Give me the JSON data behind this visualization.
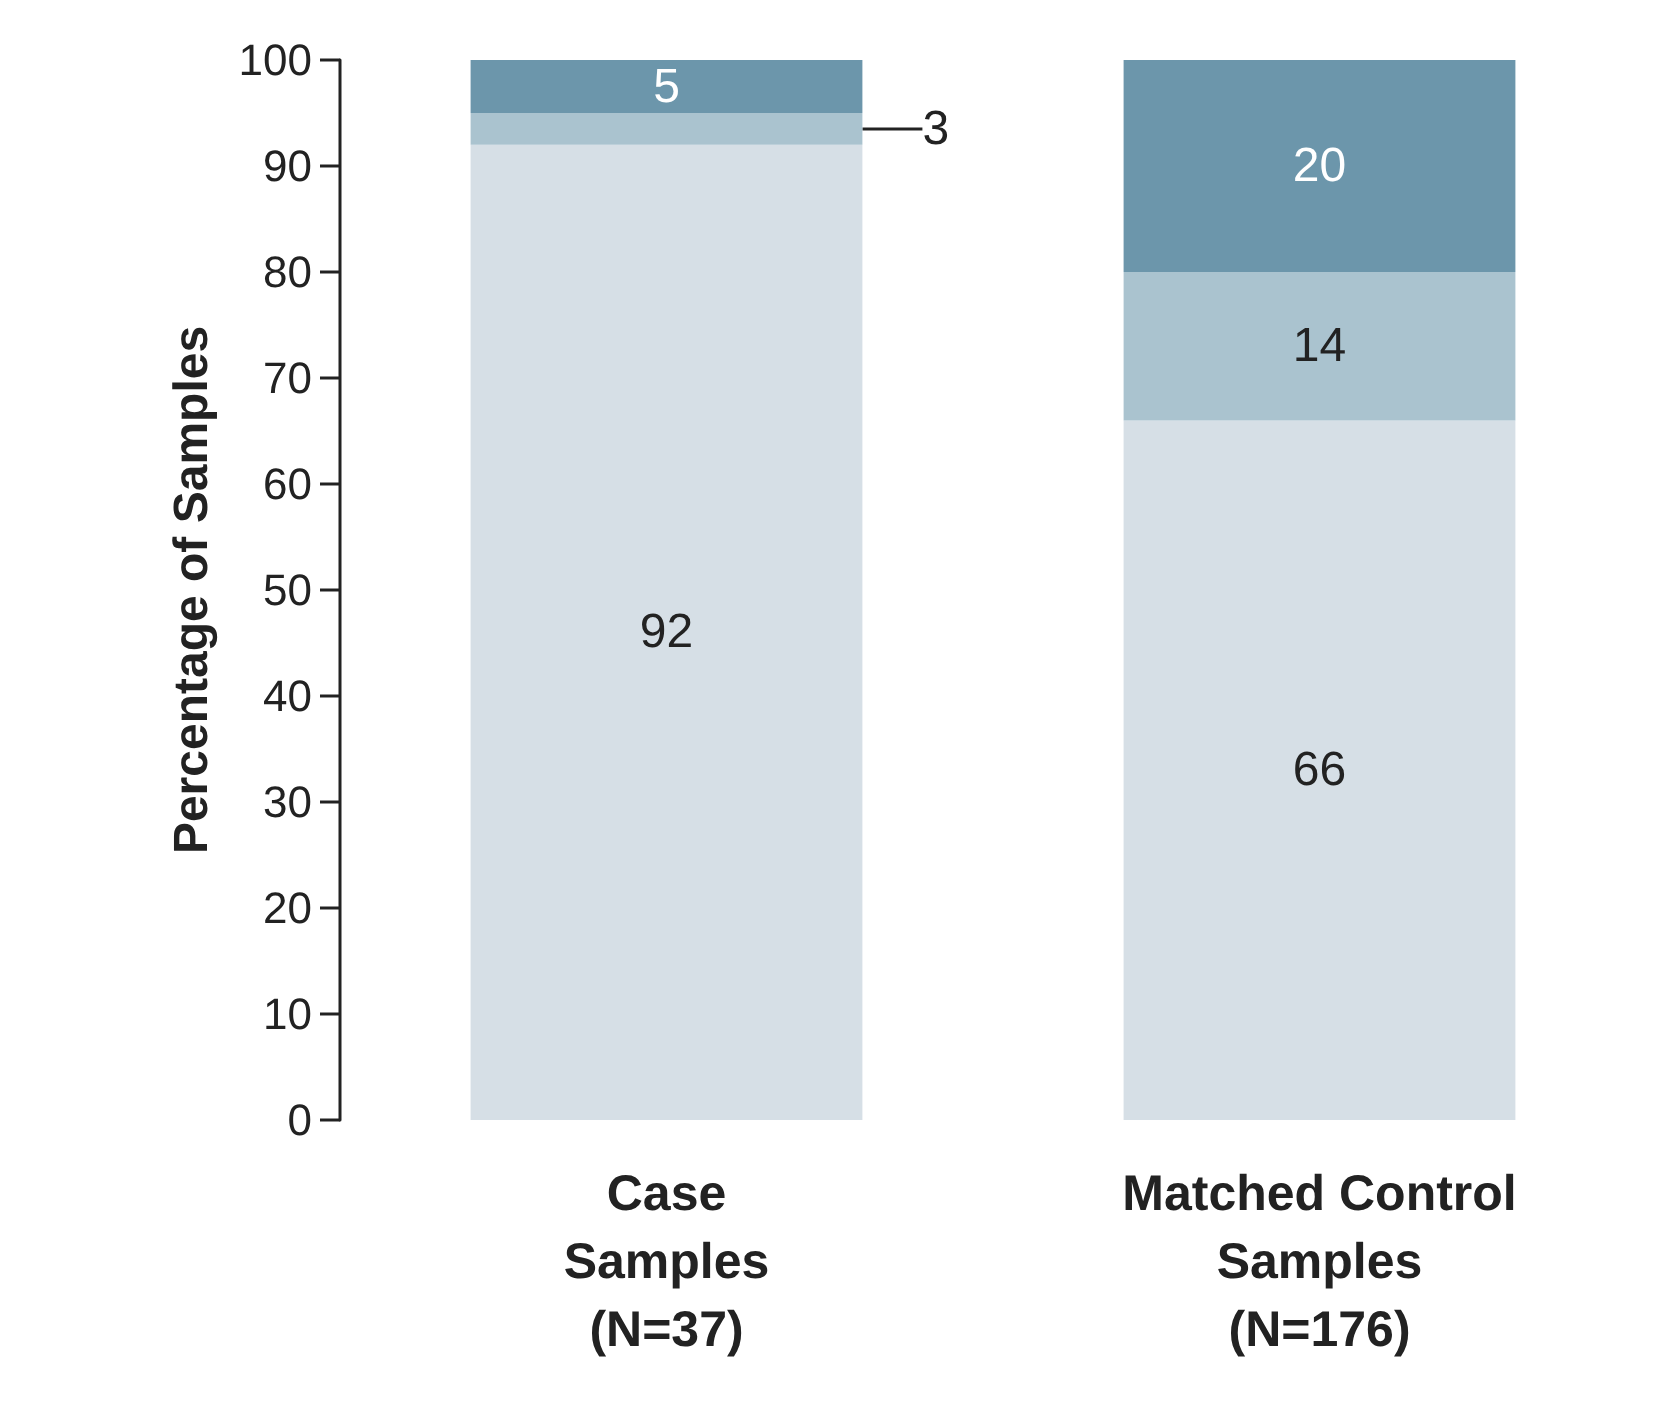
{
  "chart_data": {
    "type": "bar",
    "stacked": true,
    "ylabel": "Percentage of Samples",
    "categories": [
      "Case\nSamples\n(N=37)",
      "Matched Control\nSamples\n(N=176)"
    ],
    "series": [
      {
        "color": "#d6dfe6",
        "values": [
          92,
          66
        ]
      },
      {
        "color": "#aac3cf",
        "values": [
          3,
          14
        ]
      },
      {
        "color": "#6c96ab",
        "values": [
          5,
          20
        ]
      }
    ],
    "ylim": [
      0,
      100
    ],
    "yticks": [
      0,
      10,
      20,
      30,
      40,
      50,
      60,
      70,
      80,
      90,
      100
    ],
    "data_labels": true
  }
}
